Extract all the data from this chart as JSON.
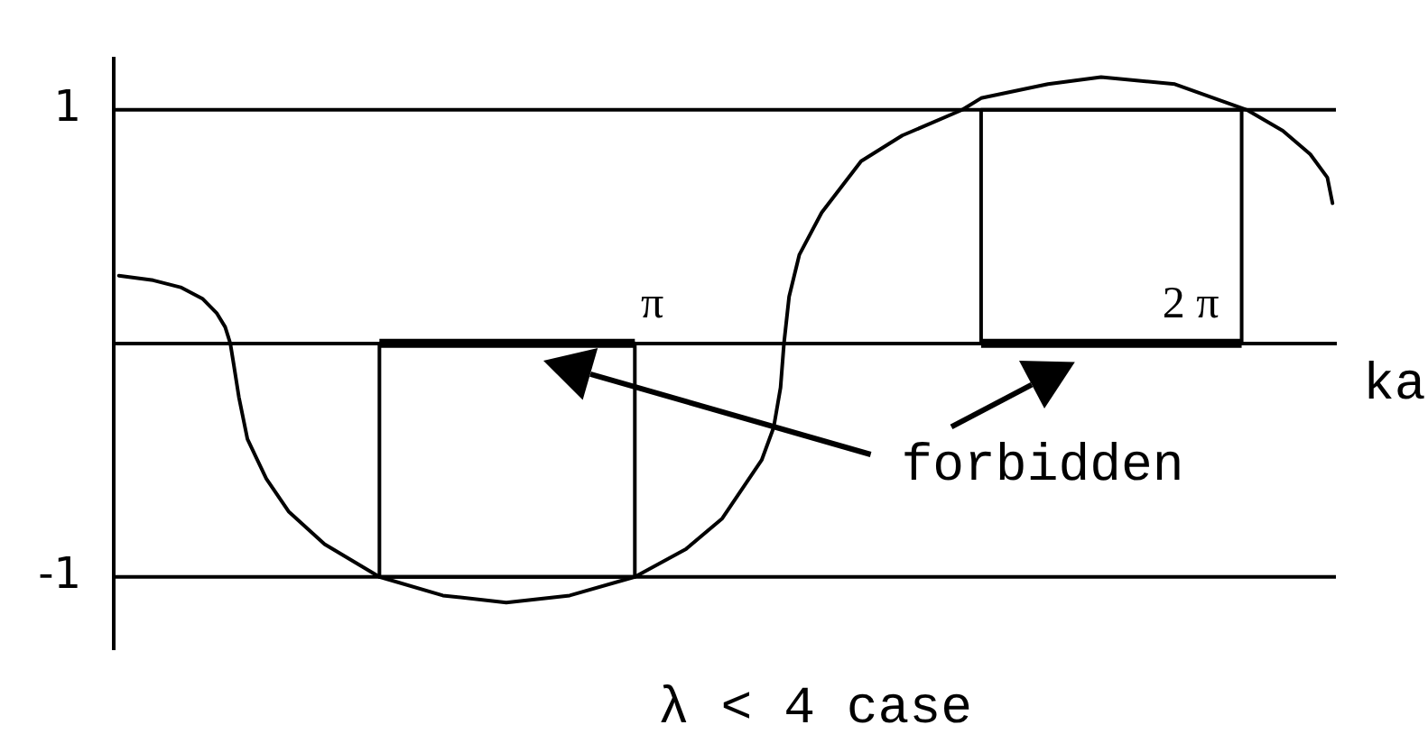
{
  "chart_data": {
    "type": "line",
    "xlabel": "ka",
    "annotations": [
      "forbidden",
      "λ < 4 case"
    ],
    "xlim": [
      0,
      7.13
    ],
    "ylim": [
      -1.31,
      1.22
    ],
    "xticks": [
      {
        "value": 3.1416,
        "label": "π"
      },
      {
        "value": 6.2832,
        "label": "2 π"
      }
    ],
    "yticks": [
      -1,
      1
    ],
    "series": [
      {
        "color": "#000000",
        "x": [
          0.03,
          0.23,
          0.39,
          0.52,
          0.6,
          0.65,
          0.68,
          0.7,
          0.73,
          0.78,
          0.89,
          1.02,
          1.23,
          1.55,
          1.92,
          2.29,
          2.66,
          3.04,
          3.34,
          3.55,
          3.78,
          3.85,
          3.89,
          3.91,
          3.94,
          4.0,
          4.13,
          4.36,
          4.6,
          4.95,
          5.06,
          5.45,
          5.76,
          6.19,
          6.61,
          6.82,
          6.98,
          7.08,
          7.11
        ],
        "values": [
          0.29,
          0.27,
          0.24,
          0.19,
          0.13,
          0.07,
          0,
          -0.09,
          -0.23,
          -0.41,
          -0.58,
          -0.72,
          -0.86,
          -1.0,
          -1.08,
          -1.11,
          -1.08,
          -1.0,
          -0.88,
          -0.75,
          -0.5,
          -0.36,
          -0.19,
          0,
          0.2,
          0.38,
          0.56,
          0.78,
          0.89,
          1.0,
          1.05,
          1.11,
          1.14,
          1.11,
          1.0,
          0.91,
          0.81,
          0.71,
          0.6
        ]
      },
      {
        "color": "#000000",
        "x": [
          1.55,
          1.55,
          3.04,
          3.04
        ],
        "values": [
          0,
          -1,
          -1,
          0
        ]
      },
      {
        "color": "#000000",
        "x": [
          5.06,
          5.06,
          6.58,
          6.58
        ],
        "values": [
          0,
          1,
          1,
          0
        ]
      },
      {
        "color": "#000000",
        "x": [
          1.55,
          3.04
        ],
        "values": [
          0,
          0
        ]
      },
      {
        "color": "#000000",
        "x": [
          5.06,
          6.58
        ],
        "values": [
          0,
          0
        ]
      }
    ],
    "ref_lines": [
      {
        "axis": "y",
        "value": 1,
        "color": "#000000"
      },
      {
        "axis": "y",
        "value": -1,
        "color": "#000000"
      }
    ]
  }
}
